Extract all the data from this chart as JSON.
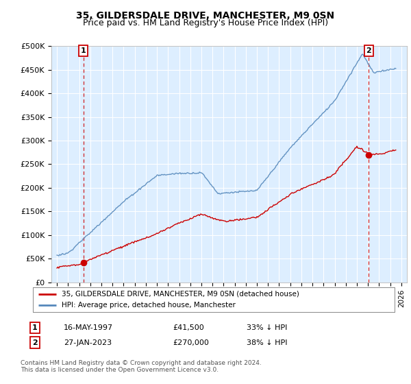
{
  "title": "35, GILDERSDALE DRIVE, MANCHESTER, M9 0SN",
  "subtitle": "Price paid vs. HM Land Registry's House Price Index (HPI)",
  "ylabel_ticks": [
    "£0",
    "£50K",
    "£100K",
    "£150K",
    "£200K",
    "£250K",
    "£300K",
    "£350K",
    "£400K",
    "£450K",
    "£500K"
  ],
  "ytick_values": [
    0,
    50000,
    100000,
    150000,
    200000,
    250000,
    300000,
    350000,
    400000,
    450000,
    500000
  ],
  "xlim": [
    1994.5,
    2026.5
  ],
  "ylim": [
    0,
    500000
  ],
  "red_line_color": "#cc0000",
  "blue_line_color": "#5588bb",
  "chart_bg_color": "#ddeeff",
  "background_color": "#ffffff",
  "sale1_x": 1997.37,
  "sale1_y": 41500,
  "sale2_x": 2023.07,
  "sale2_y": 270000,
  "legend_label_red": "35, GILDERSDALE DRIVE, MANCHESTER, M9 0SN (detached house)",
  "legend_label_blue": "HPI: Average price, detached house, Manchester",
  "annotation1_date": "16-MAY-1997",
  "annotation1_price": "£41,500",
  "annotation1_hpi": "33% ↓ HPI",
  "annotation2_date": "27-JAN-2023",
  "annotation2_price": "£270,000",
  "annotation2_hpi": "38% ↓ HPI",
  "footer": "Contains HM Land Registry data © Crown copyright and database right 2024.\nThis data is licensed under the Open Government Licence v3.0.",
  "title_fontsize": 10,
  "subtitle_fontsize": 9
}
